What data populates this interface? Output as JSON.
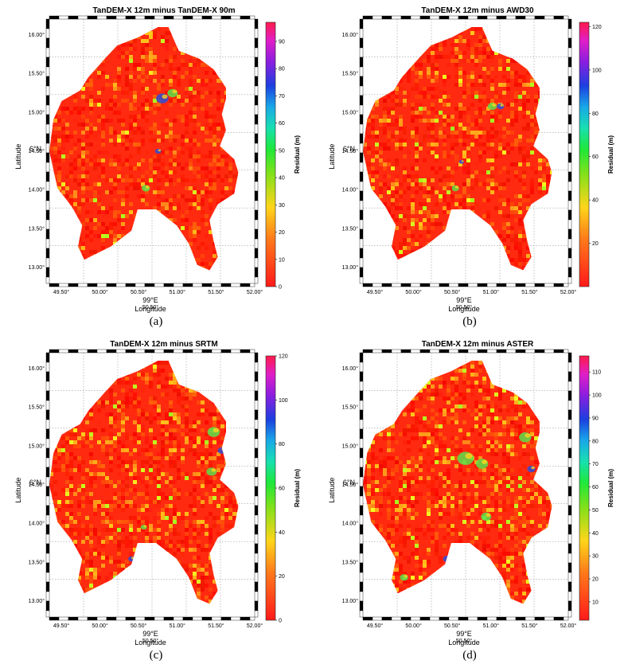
{
  "chart_data": [
    {
      "type": "heatmap",
      "panel_label": "(a)",
      "title": "TanDEM-X  12m minus TanDEM-X 90m",
      "xlabel": "Longitude",
      "ylabel": "Latitude",
      "x_ticks": [
        "49.50°",
        "50.00°",
        "50.50°",
        "51.00°",
        "51.50°",
        "52.00°"
      ],
      "y_ticks": [
        "16.00°",
        "15.50°",
        "15.00°",
        "14.50°",
        "14.00°",
        "13.50°",
        "13.00°"
      ],
      "x_center_label": "99°E",
      "y_center_label": "6°N",
      "colorbar_label": "Residual (m)",
      "colorbar_ticks": [
        "90",
        "80",
        "70",
        "60",
        "50",
        "40",
        "30",
        "20",
        "10",
        "0"
      ],
      "colorbar_range": [
        0,
        97
      ]
    },
    {
      "type": "heatmap",
      "panel_label": "(b)",
      "title": "TanDEM-X 12m minus AWD30",
      "xlabel": "Longitude",
      "ylabel": "Latitude",
      "x_ticks": [
        "49.50°",
        "50.00°",
        "50.50°",
        "51.00°",
        "51.50°",
        "52.00°"
      ],
      "y_ticks": [
        "16.00°",
        "15.50°",
        "15.00°",
        "14.50°",
        "14.00°",
        "13.50°",
        "13.00°"
      ],
      "x_center_label": "99°E",
      "y_center_label": "6°N",
      "colorbar_label": "Residual (m)",
      "colorbar_ticks": [
        "120",
        "100",
        "80",
        "60",
        "40",
        "20"
      ],
      "colorbar_range": [
        0,
        122
      ]
    },
    {
      "type": "heatmap",
      "panel_label": "(c)",
      "title": "TanDEM-X 12m minus SRTM",
      "xlabel": "Longitude",
      "ylabel": "Latitude",
      "x_ticks": [
        "49.50°",
        "50.00°",
        "50.50°",
        "51.00°",
        "51.50°",
        "52.00°"
      ],
      "y_ticks": [
        "16.00°",
        "15.50°",
        "15.00°",
        "14.50°",
        "14.00°",
        "13.50°",
        "13.00°"
      ],
      "x_center_label": "99°E",
      "y_center_label": "6°N",
      "colorbar_label": "Residual (m)",
      "colorbar_ticks": [
        "120",
        "100",
        "80",
        "60",
        "40",
        "20",
        "0"
      ],
      "colorbar_range": [
        0,
        120
      ]
    },
    {
      "type": "heatmap",
      "panel_label": "(d)",
      "title": "TanDEM-X 12m minus ASTER",
      "xlabel": "Longitude",
      "ylabel": "Latitude",
      "x_ticks": [
        "49.50°",
        "50.00°",
        "50.50°",
        "51.00°",
        "51.50°",
        "52.00°"
      ],
      "y_ticks": [
        "16.00°",
        "15.50°",
        "15.00°",
        "14.50°",
        "14.00°",
        "13.50°",
        "13.00°"
      ],
      "x_center_label": "99°E",
      "y_center_label": "6°N",
      "colorbar_label": "Residual (m)",
      "colorbar_ticks": [
        "110",
        "100",
        "90",
        "80",
        "70",
        "60",
        "50",
        "40",
        "30",
        "20",
        "10"
      ],
      "colorbar_range": [
        2,
        117
      ]
    }
  ]
}
